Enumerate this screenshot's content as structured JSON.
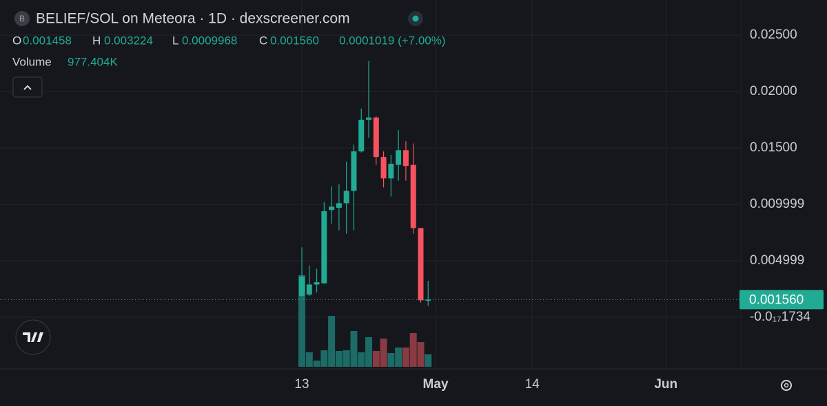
{
  "header": {
    "title": "BELIEF/SOL on Meteora · 1D · dexscreener.com",
    "o_key": "O",
    "o": "0.001458",
    "h_key": "H",
    "h": "0.003224",
    "l_key": "L",
    "l": "0.0009968",
    "c_key": "C",
    "c": "0.001560",
    "change": "0.0001019 (+7.00%)",
    "volume_key": "Volume",
    "icon_letter": "B"
  },
  "chart_data": {
    "type": "candlestick",
    "x": [
      0,
      1,
      2,
      3,
      4,
      5,
      6,
      7,
      8,
      9,
      10,
      11,
      12,
      13,
      14,
      15,
      16,
      17
    ],
    "open": [
      0.0019,
      0.002,
      0.0029,
      0.003,
      0.0095,
      0.0097,
      0.0101,
      0.0112,
      0.0147,
      0.0175,
      0.0177,
      0.0142,
      0.0123,
      0.0135,
      0.0148,
      0.0135,
      0.0079,
      0.001458
    ],
    "high": [
      0.0062,
      0.0046,
      0.0043,
      0.0102,
      0.0116,
      0.0118,
      0.0138,
      0.0153,
      0.0185,
      0.0227,
      0.0178,
      0.0147,
      0.0144,
      0.0166,
      0.0156,
      0.0154,
      0.0079,
      0.003224
    ],
    "low": [
      0.0018,
      0.0019,
      0.0022,
      0.003,
      0.0083,
      0.0077,
      0.0074,
      0.0077,
      0.0146,
      0.0159,
      0.0135,
      0.0115,
      0.0107,
      0.0121,
      0.0121,
      0.0074,
      0.0013,
      0.0009968
    ],
    "close": [
      0.0036,
      0.0029,
      0.0031,
      0.0094,
      0.0098,
      0.0101,
      0.0112,
      0.0147,
      0.0175,
      0.0177,
      0.0142,
      0.0123,
      0.0136,
      0.0148,
      0.0134,
      0.0079,
      0.0015,
      0.00156
    ],
    "volume": {
      "values": [
        7222000,
        1140000,
        489000,
        1303000,
        4018000,
        1249000,
        1303000,
        2824000,
        1140000,
        2335000,
        1249000,
        2226000,
        1086000,
        1520000,
        1520000,
        2661000,
        1955000,
        977404
      ],
      "last_label": "977.404K",
      "up_color": "#1d6b67",
      "down_color": "#8a3a43"
    },
    "up_color": "#22ab94",
    "down_color": "#f7525f",
    "xlim": [
      -40.63,
      59.09
    ],
    "xticks": [
      {
        "value": 0,
        "label": "13"
      },
      {
        "value": 18,
        "label": "May"
      },
      {
        "value": 31,
        "label": "14"
      },
      {
        "value": 49,
        "label": "Jun"
      }
    ],
    "ylim": [
      -0.004512,
      0.02811
    ],
    "yticks": [
      {
        "value": 0.025,
        "label": "0.02500"
      },
      {
        "value": 0.02,
        "label": "0.02000"
      },
      {
        "value": 0.015,
        "label": "0.01500"
      },
      0.009999,
      0.004999,
      {
        "value": -1.734e-18,
        "label": "-0.0₁₇1734"
      }
    ],
    "price_line": {
      "value": 0.00156,
      "label": "0.001560"
    },
    "grid": true
  }
}
